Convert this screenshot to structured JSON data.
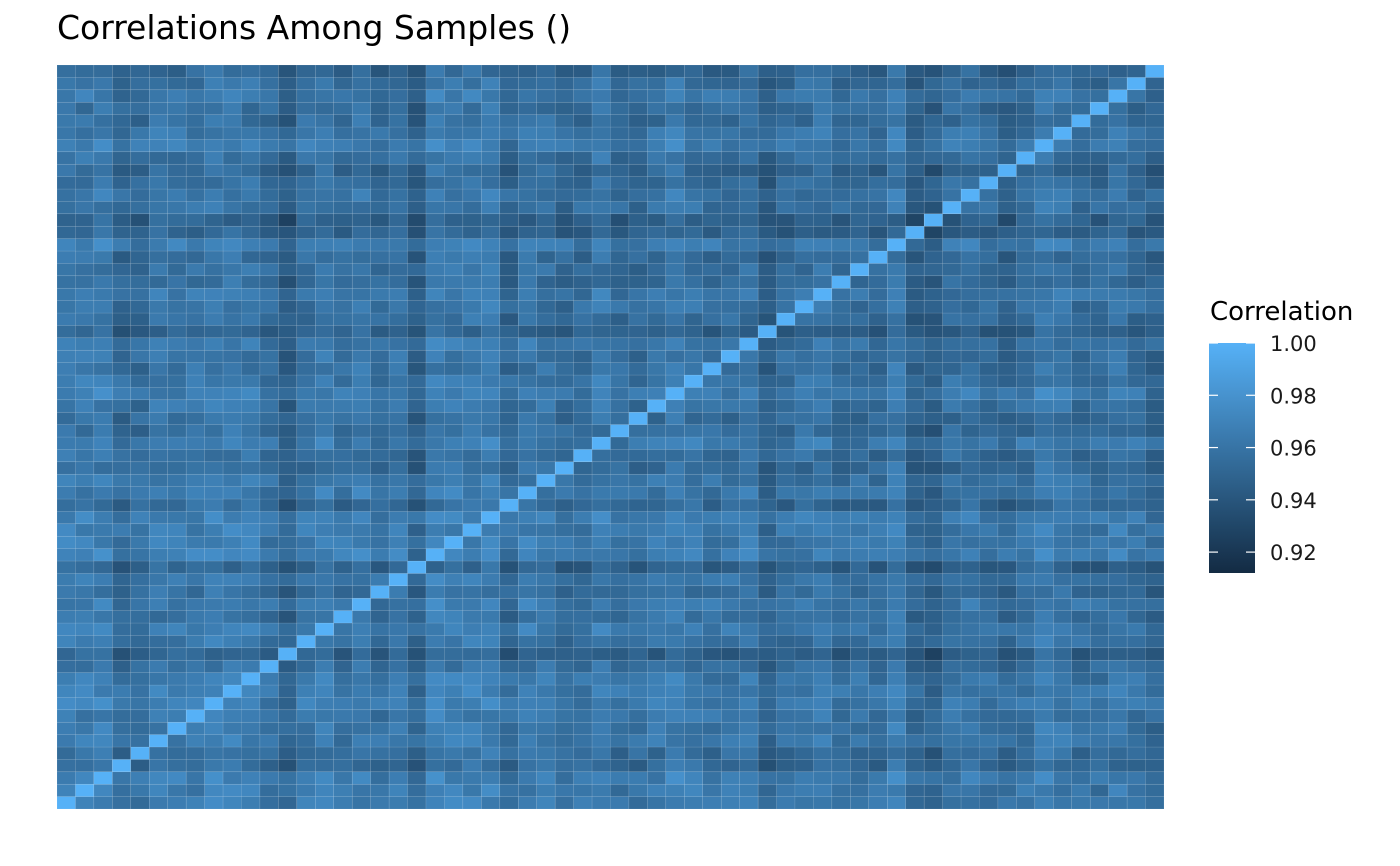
{
  "chart_data": {
    "type": "heatmap",
    "title": "Correlations Among Samples ()",
    "xlabel": "",
    "ylabel": "",
    "n_samples": 60,
    "diagonal_value": 1.0,
    "value_range": [
      0.912,
      1.0
    ],
    "legend": {
      "title": "Correlation",
      "ticks": [
        "1.00",
        "0.98",
        "0.96",
        "0.94",
        "0.92"
      ],
      "tick_values": [
        1.0,
        0.98,
        0.96,
        0.94,
        0.92
      ],
      "placement": "right"
    },
    "color_low": "#132B43",
    "color_high": "#56B1F7",
    "grid": false,
    "darker_sample_rows": [
      12,
      19,
      24,
      38,
      46,
      47,
      51,
      55,
      59
    ],
    "note_values": "off-diagonal correlations mostly between 0.93 and 0.98"
  }
}
